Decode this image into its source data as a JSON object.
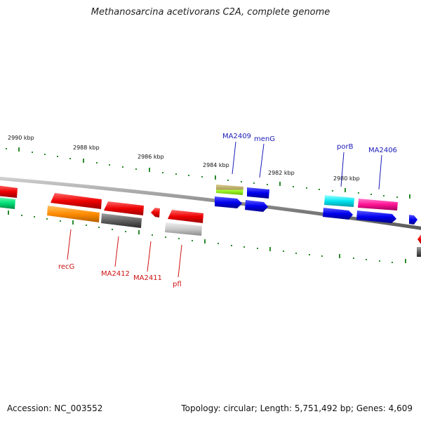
{
  "title": "Methanosarcina acetivorans C2A, complete genome",
  "accession": "Accession: NC_003552",
  "summary": "Topology: circular; Length: 5,751,492 bp; Genes: 4,609",
  "kbp_labels": [
    "2990 kbp",
    "2988 kbp",
    "2986 kbp",
    "2984 kbp",
    "2982 kbp",
    "2980 kbp"
  ],
  "gene_labels": {
    "top": [
      "MA2409",
      "menG",
      "porB",
      "MA2406"
    ],
    "bottom": [
      "recG",
      "MA2412",
      "MA2411",
      "pfl"
    ]
  },
  "colors": {
    "label_top": "#1a1ab8",
    "label_bottom": "#cc1111",
    "ticks": "#2a8a2a",
    "backbone": "#8a8a8a"
  }
}
